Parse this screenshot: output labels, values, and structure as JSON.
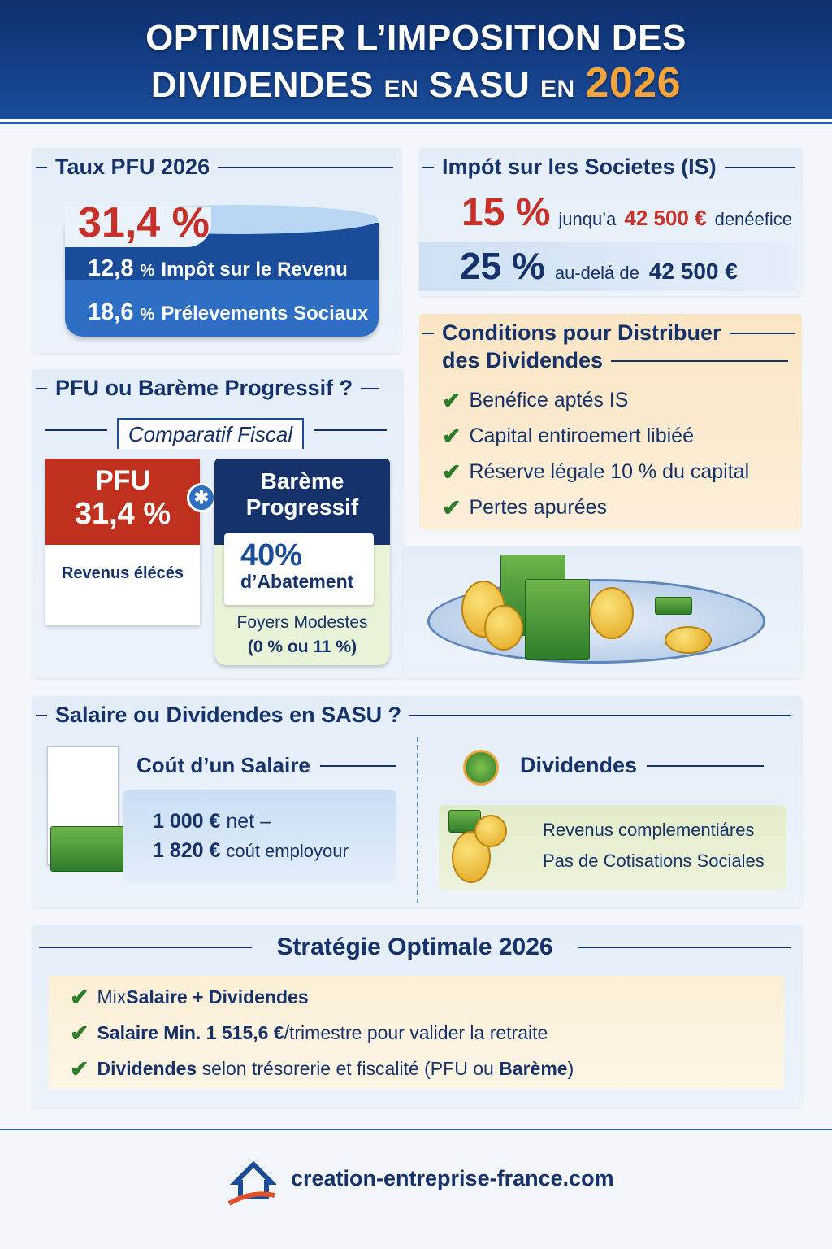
{
  "header": {
    "title_line1": "OPTIMISER L’IMPOSITION DES",
    "title_line2_a": "DIVIDENDES",
    "title_line2_b": "EN",
    "title_line2_c": "SASU",
    "title_line2_d": "EN",
    "title_year": "2026"
  },
  "pfu": {
    "title": "Taux PFU 2026",
    "total": "31,4 %",
    "rows": [
      {
        "rate": "12,8",
        "pct": "%",
        "label": "Impôt sur le Revenu"
      },
      {
        "rate": "18,6",
        "pct": "%",
        "label": "Prélevements Sociaux"
      }
    ]
  },
  "is": {
    "title": "Impót sur les Societes (IS)",
    "row1": {
      "rate": "15 %",
      "pre": "junqu’a",
      "amount": "42 500 €",
      "post": "denéefice"
    },
    "row2": {
      "rate": "25 %",
      "pre": "au-delá de",
      "amount": "42 500 €"
    }
  },
  "conditions": {
    "title_line1": "Conditions pour Distribuer",
    "title_line2": "des Dividendes",
    "items": [
      "Benéfice aptés IS",
      "Capital entiroemert libiéé",
      "Réserve légale 10 % du capital",
      "Pertes apurées"
    ]
  },
  "comparatif": {
    "title": "PFU ou Barème Progressif ?",
    "subtitle": "Comparatif Fiscal",
    "pfu_label": "PFU",
    "pfu_rate": "31,4 %",
    "pfu_note": "Revenus élécés",
    "bareme_label1": "Barème",
    "bareme_label2": "Progressif",
    "abattement_rate": "40%",
    "abattement_label": "d’Abatement",
    "foyers": "Foyers Modestes",
    "foyers_rates": "(0 % ou 11 %)"
  },
  "salaire": {
    "title": "Salaire ou Dividendes en SASU ?",
    "cost_title": "Coút d’un Salaire",
    "net_amount": "1 000 €",
    "net_label": "net",
    "cost_amount": "1 820 €",
    "cost_label": "coút employour",
    "div_title": "Dividendes",
    "div_items": [
      "Revenus complementiáres",
      "Pas de Cotisations Sociales"
    ]
  },
  "strategie": {
    "title": "Stratégie Optimale 2026",
    "items": [
      {
        "a": "Mix ",
        "b": "Salaire + Dividendes",
        "c": ""
      },
      {
        "a": "",
        "b": "Salaire Min. 1 515,6 €",
        "c": "/trimestre pour valider la retraite"
      },
      {
        "a": "",
        "b": "Dividendes",
        "c": " selon trésorerie et fiscalité (PFU ou ",
        "d": "Barème",
        "e": ")"
      }
    ]
  },
  "footer": {
    "site": "creation-entreprise-france.com"
  },
  "colors": {
    "navy": "#15336a",
    "red": "#c8302a",
    "orange": "#f3a43c",
    "green": "#2d7d2a"
  }
}
